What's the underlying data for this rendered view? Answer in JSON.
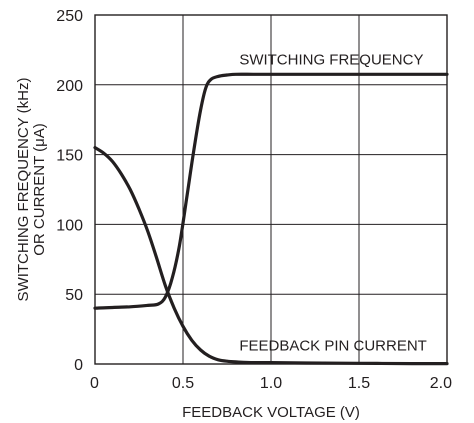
{
  "chart_data": {
    "type": "line",
    "xlabel": "FEEDBACK VOLTAGE (V)",
    "ylabel_line1": "SWITCHING FREQUENCY (kHz)",
    "ylabel_line2": "OR CURRENT (μA)",
    "xlim": [
      0,
      2.0
    ],
    "ylim": [
      0,
      250
    ],
    "grid": true,
    "x_ticks": [
      {
        "value": 0,
        "label": "0"
      },
      {
        "value": 0.5,
        "label": "0.5"
      },
      {
        "value": 1.0,
        "label": "1.0"
      },
      {
        "value": 1.5,
        "label": "1.5"
      },
      {
        "value": 2.0,
        "label": "2.0"
      }
    ],
    "y_ticks": [
      {
        "value": 0,
        "label": "0"
      },
      {
        "value": 50,
        "label": "50"
      },
      {
        "value": 100,
        "label": "100"
      },
      {
        "value": 150,
        "label": "150"
      },
      {
        "value": 200,
        "label": "200"
      },
      {
        "value": 250,
        "label": "250"
      }
    ],
    "series": [
      {
        "name": "SWITCHING FREQUENCY",
        "x": [
          0,
          0.1,
          0.2,
          0.3,
          0.36,
          0.4,
          0.44,
          0.48,
          0.52,
          0.56,
          0.6,
          0.63,
          0.66,
          0.7,
          0.75,
          0.8,
          0.9,
          1.0,
          1.2,
          1.5,
          1.8,
          2.0
        ],
        "y": [
          40,
          40.5,
          41,
          42,
          43,
          48,
          62,
          85,
          118,
          152,
          182,
          198,
          204,
          206,
          207,
          207.5,
          207.5,
          207.5,
          207.5,
          207.5,
          207.5,
          207.5
        ]
      },
      {
        "name": "FEEDBACK PIN CURRENT",
        "x": [
          0,
          0.05,
          0.1,
          0.15,
          0.2,
          0.25,
          0.3,
          0.35,
          0.4,
          0.45,
          0.5,
          0.55,
          0.6,
          0.65,
          0.7,
          0.75,
          0.8,
          0.9,
          1.0,
          1.2,
          1.5,
          1.8,
          2.0
        ],
        "y": [
          155,
          151,
          145,
          136,
          125,
          111,
          95,
          76,
          56,
          40,
          27,
          17,
          10,
          5.5,
          3,
          2,
          1.5,
          1,
          1,
          0.7,
          0.5,
          0.3,
          0.3
        ]
      }
    ],
    "annotations": [
      {
        "text": "SWITCHING FREQUENCY",
        "series": 0
      },
      {
        "text": "FEEDBACK PIN CURRENT",
        "series": 1
      }
    ]
  }
}
